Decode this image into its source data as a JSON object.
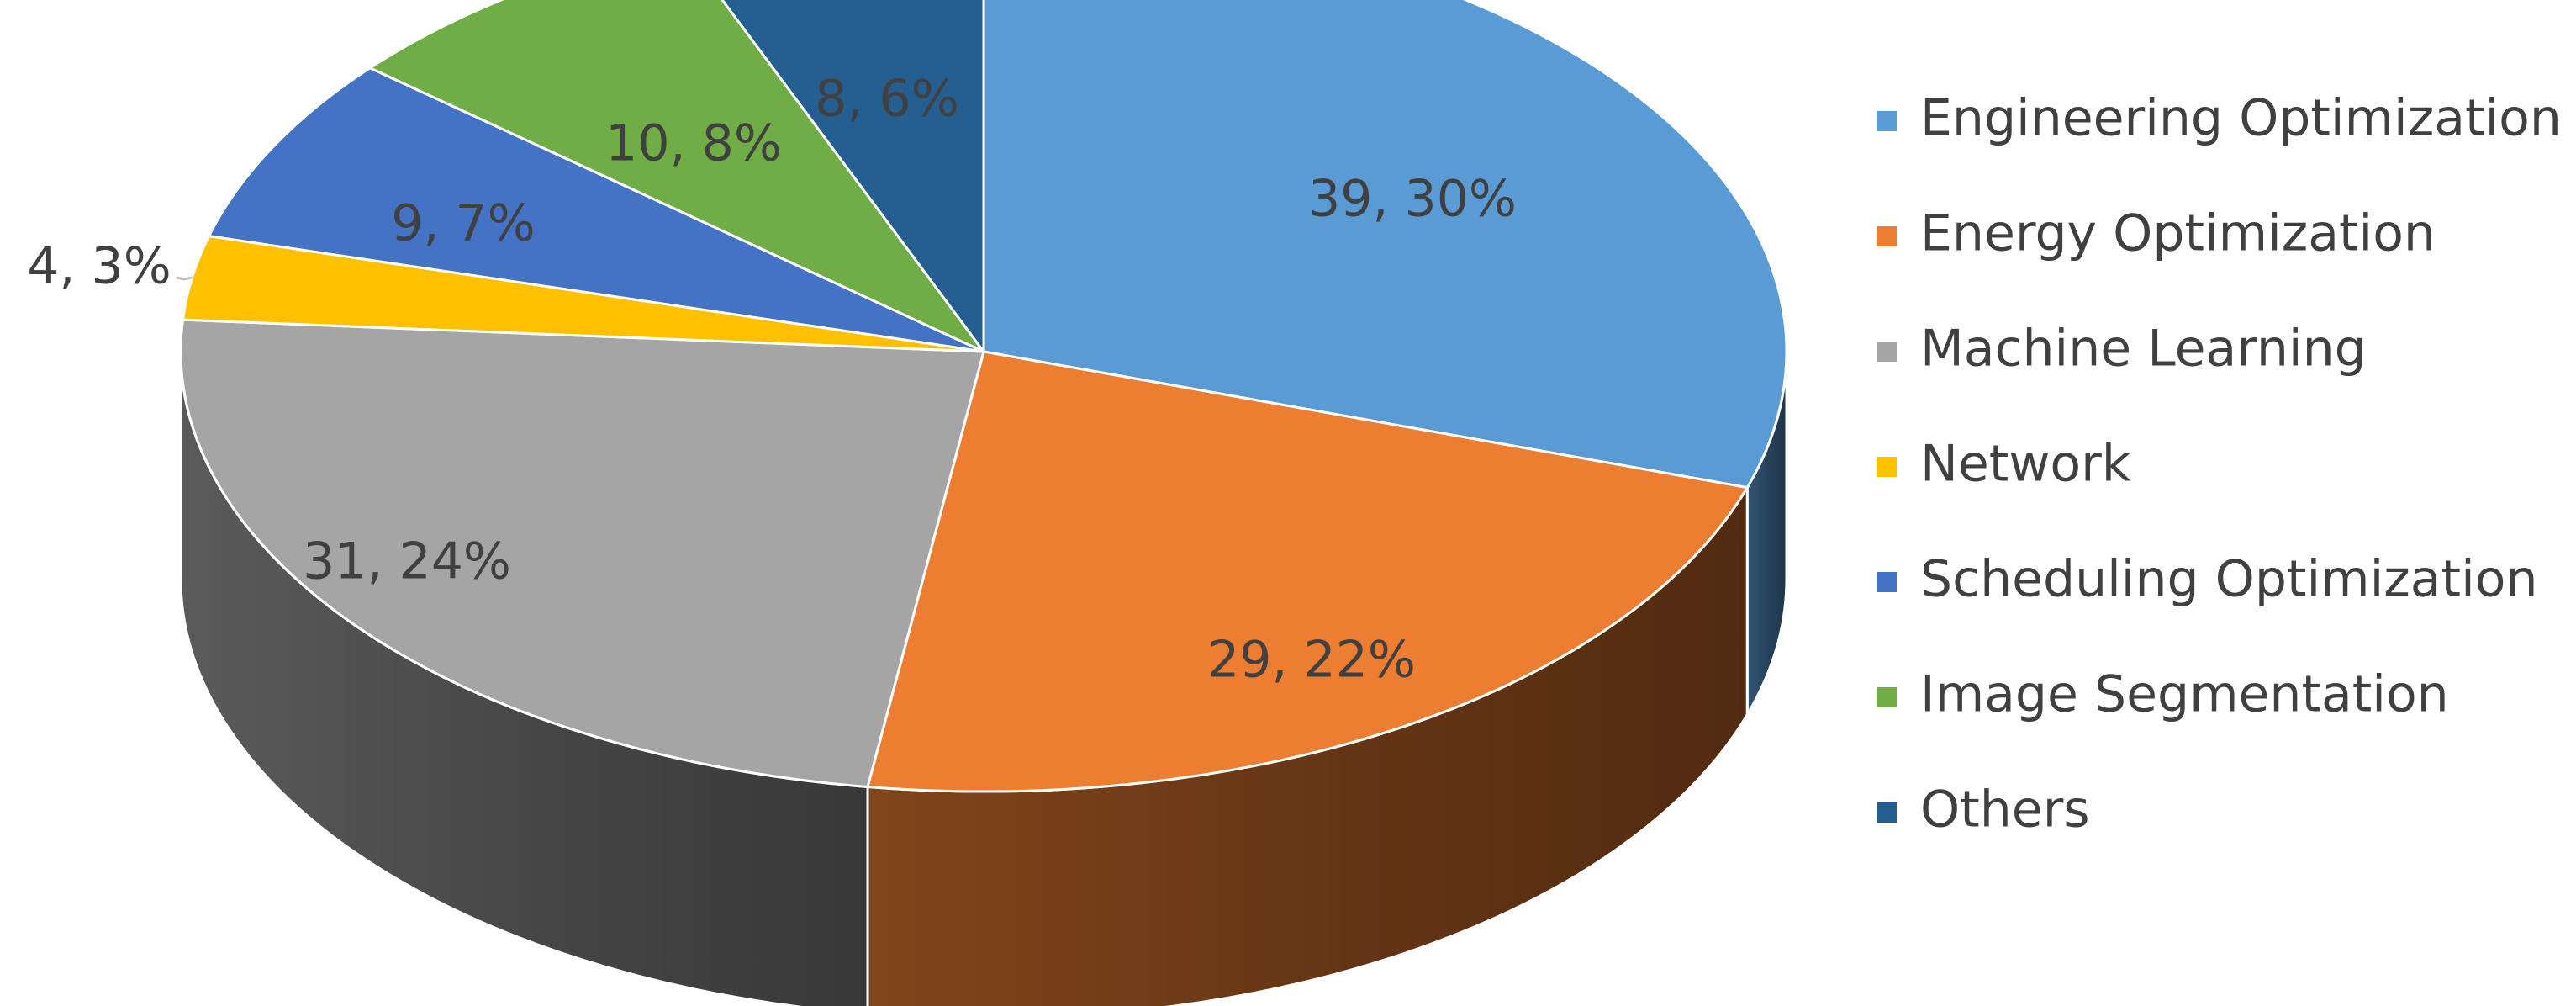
{
  "chart_data": {
    "type": "pie",
    "variant": "3d",
    "title": "",
    "categories": [
      "Engineering Optimization",
      "Energy Optimization",
      "Machine Learning",
      "Network",
      "Scheduling Optimization",
      "Image Segmentation",
      "Others"
    ],
    "values": [
      39,
      29,
      31,
      4,
      9,
      10,
      8
    ],
    "percentages": [
      30,
      22,
      24,
      3,
      7,
      8,
      6
    ],
    "data_labels": [
      "39, 30%",
      "29, 22%",
      "31, 24%",
      "4, 3%",
      "9, 7%",
      "10, 8%",
      "8, 6%"
    ],
    "colors": [
      "#5B9BD5",
      "#ED7D31",
      "#A5A5A5",
      "#FFC000",
      "#4472C4",
      "#70AD47",
      "#255E91"
    ],
    "legend_position": "right"
  }
}
